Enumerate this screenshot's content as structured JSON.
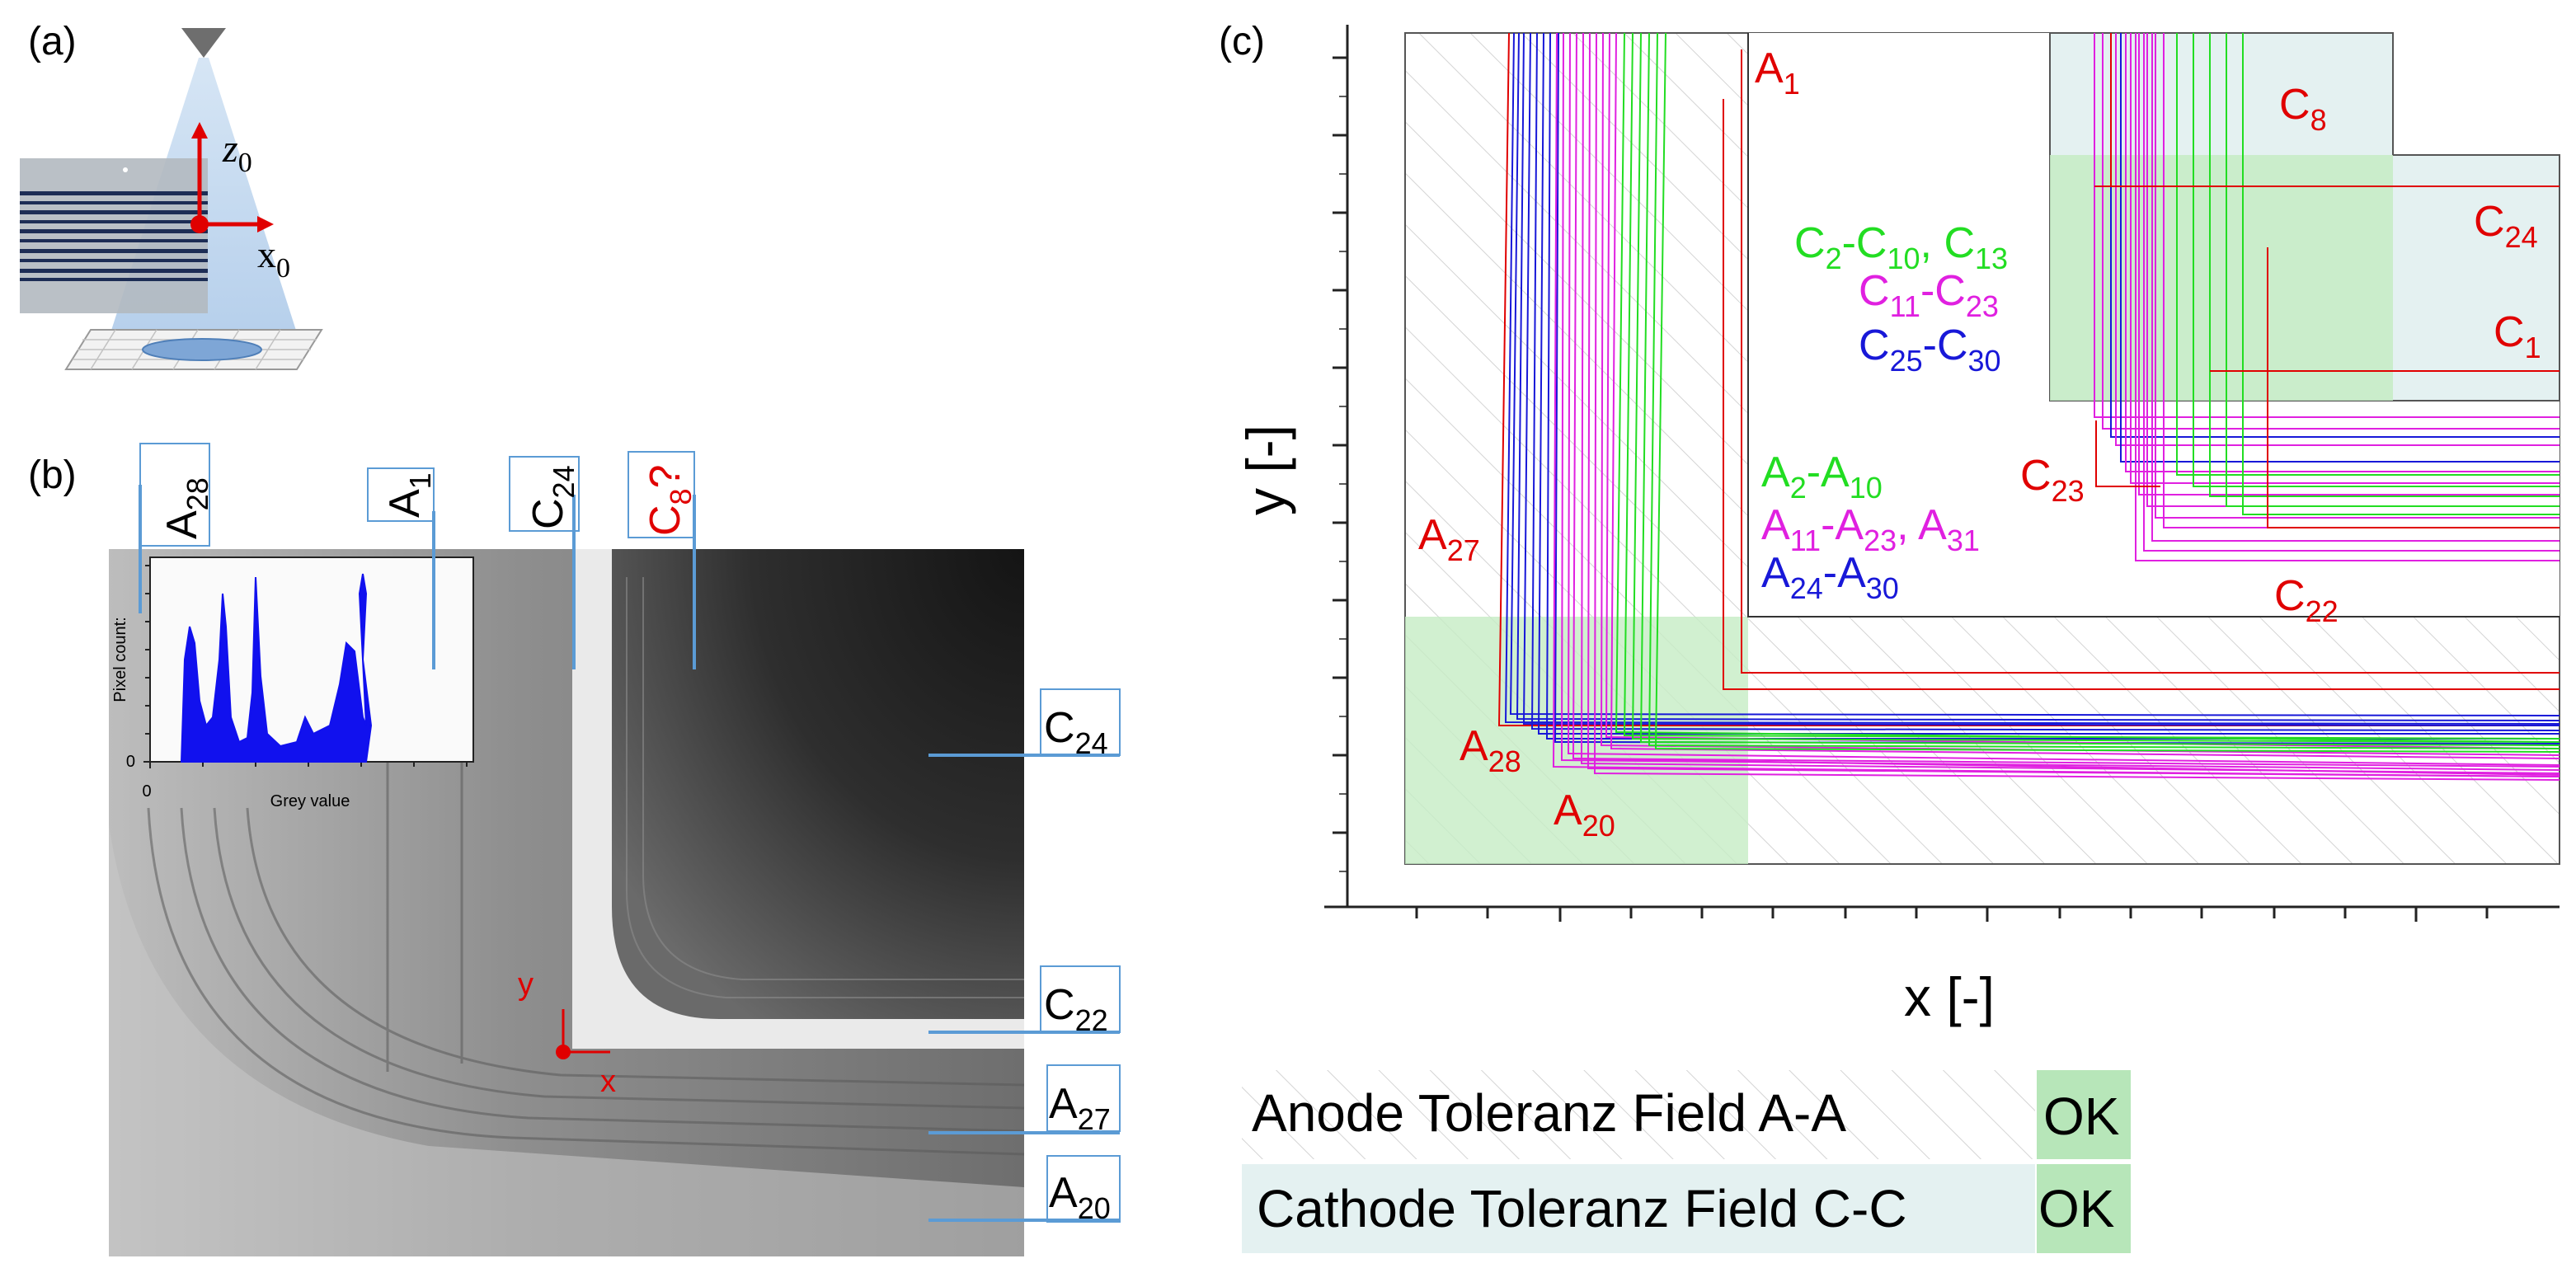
{
  "panels": {
    "a": "(a)",
    "b": "(b)",
    "c": "(c)"
  },
  "panel_a": {
    "z_label": "z",
    "z_sub": "0",
    "x_label": "x",
    "x_sub": "0"
  },
  "panel_b": {
    "top_labels": [
      {
        "main": "A",
        "sub": "28",
        "color": "#000000"
      },
      {
        "main": "A",
        "sub": "1",
        "color": "#000000"
      },
      {
        "main": "C",
        "sub": "24",
        "color": "#000000"
      },
      {
        "main": "C",
        "sub": "8",
        "suffix": "?",
        "color": "#e00000"
      }
    ],
    "side_labels": [
      {
        "main": "C",
        "sub": "24"
      },
      {
        "main": "C",
        "sub": "22"
      },
      {
        "main": "A",
        "sub": "27"
      },
      {
        "main": "A",
        "sub": "20"
      }
    ],
    "inset": {
      "ylabel": "Pixel count:",
      "xlabel": "Grey value",
      "x0": "0",
      "y0": "0"
    },
    "axes": {
      "x": "x",
      "y": "y"
    }
  },
  "panel_c": {
    "xlabel": "x [-]",
    "ylabel": "y [-]",
    "red_labels": [
      {
        "main": "A",
        "sub": "1"
      },
      {
        "main": "C",
        "sub": "8"
      },
      {
        "main": "C",
        "sub": "24"
      },
      {
        "main": "C",
        "sub": "1"
      },
      {
        "main": "C",
        "sub": "23"
      },
      {
        "main": "C",
        "sub": "22"
      },
      {
        "main": "A",
        "sub": "27"
      },
      {
        "main": "A",
        "sub": "28"
      },
      {
        "main": "A",
        "sub": "20"
      }
    ],
    "cathode_legend": [
      {
        "color": "#22dd22",
        "parts": [
          {
            "m": "C",
            "s": "2"
          },
          {
            "t": "-"
          },
          {
            "m": "C",
            "s": "10"
          },
          {
            "t": ", "
          },
          {
            "m": "C",
            "s": "13"
          }
        ]
      },
      {
        "color": "#e020e0",
        "parts": [
          {
            "m": "C",
            "s": "11"
          },
          {
            "t": "-"
          },
          {
            "m": "C",
            "s": "23"
          }
        ]
      },
      {
        "color": "#1818d8",
        "parts": [
          {
            "m": "C",
            "s": "25"
          },
          {
            "t": "-"
          },
          {
            "m": "C",
            "s": "30"
          }
        ]
      }
    ],
    "anode_legend": [
      {
        "color": "#22dd22",
        "parts": [
          {
            "m": "A",
            "s": "2"
          },
          {
            "t": "-"
          },
          {
            "m": "A",
            "s": "10"
          }
        ]
      },
      {
        "color": "#e020e0",
        "parts": [
          {
            "m": "A",
            "s": "11"
          },
          {
            "t": "-"
          },
          {
            "m": "A",
            "s": "23"
          },
          {
            "t": ", "
          },
          {
            "m": "A",
            "s": "31"
          }
        ]
      },
      {
        "color": "#1818d8",
        "parts": [
          {
            "m": "A",
            "s": "24"
          },
          {
            "t": "-"
          },
          {
            "m": "A",
            "s": "30"
          }
        ]
      }
    ]
  },
  "status_table": [
    {
      "label": "Anode Toleranz Field A-A",
      "status": "OK"
    },
    {
      "label": "Cathode Toleranz Field C-C",
      "status": "OK"
    }
  ],
  "colors": {
    "red": "#e00000",
    "green": "#22dd22",
    "magenta": "#e020e0",
    "blue": "#1818d8",
    "ok_bg": "#b7e6b9",
    "field_bg": "#e4f1f1",
    "zone_green": "#c5ecc4"
  }
}
